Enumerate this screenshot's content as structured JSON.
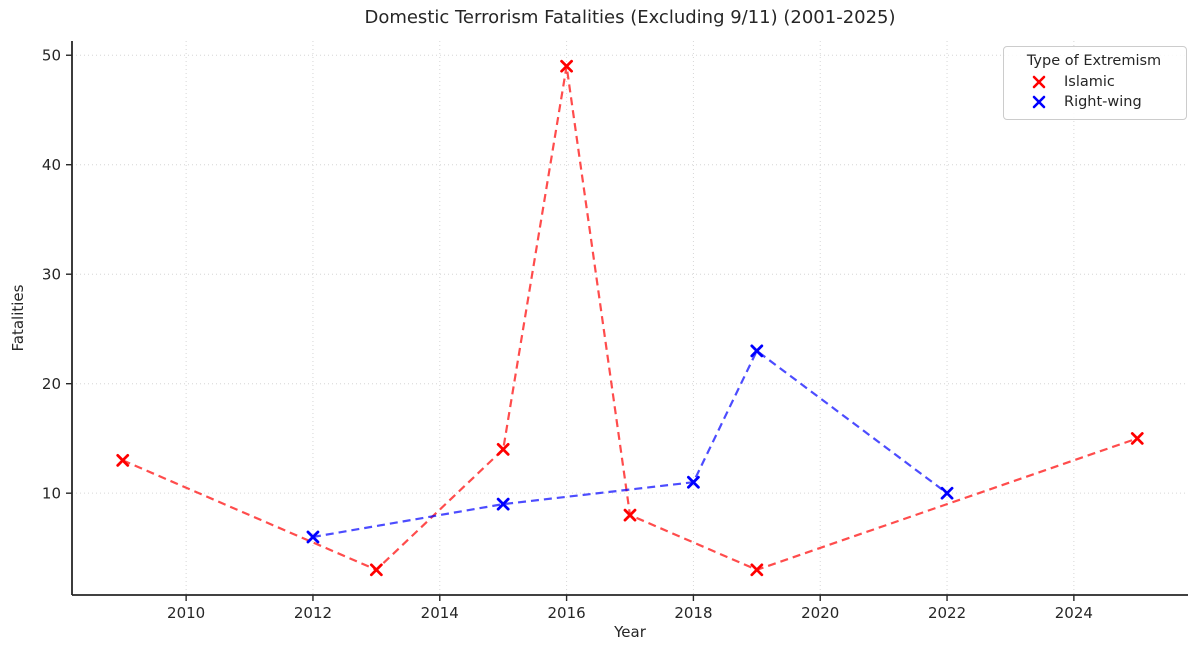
{
  "chart_data": {
    "type": "line",
    "title": "Domestic Terrorism Fatalities (Excluding 9/11) (2001-2025)",
    "xlabel": "Year",
    "ylabel": "Fatalities",
    "xlim": [
      2008.2,
      2025.8
    ],
    "ylim": [
      0.7,
      51.3
    ],
    "xticks": [
      2010,
      2012,
      2014,
      2016,
      2018,
      2020,
      2022,
      2024
    ],
    "yticks": [
      10,
      20,
      30,
      40,
      50
    ],
    "grid": true,
    "grid_color": "#d6d6d6",
    "spine_color": "#262626",
    "text_color": "#262626",
    "marker": "x",
    "linestyle": "dashed",
    "legend_title": "Type of Extremism",
    "legend_position": "upper right",
    "series": [
      {
        "name": "Islamic",
        "color": "#ff0000",
        "points": [
          [
            2009,
            13
          ],
          [
            2013,
            3
          ],
          [
            2015,
            14
          ],
          [
            2016,
            49
          ],
          [
            2017,
            8
          ],
          [
            2019,
            3
          ],
          [
            2025,
            15
          ]
        ]
      },
      {
        "name": "Right-wing",
        "color": "#0000ff",
        "points": [
          [
            2012,
            6
          ],
          [
            2015,
            9
          ],
          [
            2018,
            11
          ],
          [
            2019,
            23
          ],
          [
            2022,
            10
          ]
        ]
      }
    ]
  }
}
